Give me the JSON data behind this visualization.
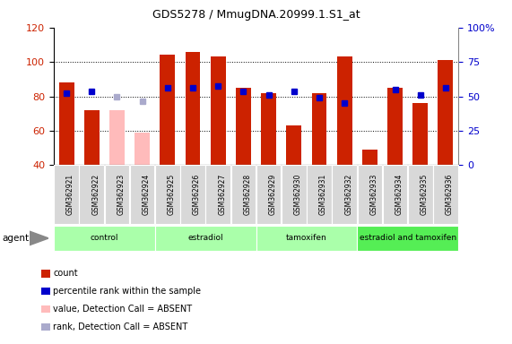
{
  "title": "GDS5278 / MmugDNA.20999.1.S1_at",
  "samples": [
    "GSM362921",
    "GSM362922",
    "GSM362923",
    "GSM362924",
    "GSM362925",
    "GSM362926",
    "GSM362927",
    "GSM362928",
    "GSM362929",
    "GSM362930",
    "GSM362931",
    "GSM362932",
    "GSM362933",
    "GSM362934",
    "GSM362935",
    "GSM362936"
  ],
  "count_values": [
    88,
    72,
    null,
    null,
    104,
    106,
    103,
    85,
    82,
    63,
    82,
    103,
    49,
    85,
    76,
    101
  ],
  "count_absent": [
    false,
    false,
    true,
    false,
    false,
    false,
    false,
    false,
    false,
    false,
    false,
    false,
    false,
    false,
    false,
    false
  ],
  "rank_values": [
    82,
    83,
    null,
    null,
    85,
    85,
    86,
    83,
    81,
    83,
    79,
    76,
    null,
    84,
    81,
    85
  ],
  "rank_absent": [
    false,
    false,
    false,
    true,
    false,
    false,
    false,
    false,
    false,
    false,
    false,
    false,
    false,
    false,
    false,
    false
  ],
  "absent_count_value": [
    null,
    null,
    72,
    59,
    null,
    null,
    null,
    null,
    null,
    null,
    null,
    null,
    null,
    null,
    null,
    null
  ],
  "absent_rank_value": [
    null,
    null,
    80,
    77,
    null,
    null,
    null,
    null,
    null,
    null,
    null,
    null,
    null,
    null,
    null,
    null
  ],
  "groups": [
    {
      "label": "control",
      "start": 0,
      "end": 3,
      "color": "#aaffaa"
    },
    {
      "label": "estradiol",
      "start": 4,
      "end": 7,
      "color": "#aaffaa"
    },
    {
      "label": "tamoxifen",
      "start": 8,
      "end": 11,
      "color": "#aaffaa"
    },
    {
      "label": "estradiol and tamoxifen",
      "start": 12,
      "end": 15,
      "color": "#55ee55"
    }
  ],
  "ylim_left": [
    40,
    120
  ],
  "ylim_right": [
    0,
    100
  ],
  "bar_color_present": "#cc2200",
  "bar_color_absent": "#ffbbbb",
  "rank_color_present": "#0000cc",
  "rank_color_absent": "#aaaacc",
  "legend_items": [
    {
      "label": "count",
      "color": "#cc2200"
    },
    {
      "label": "percentile rank within the sample",
      "color": "#0000cc"
    },
    {
      "label": "value, Detection Call = ABSENT",
      "color": "#ffbbbb"
    },
    {
      "label": "rank, Detection Call = ABSENT",
      "color": "#aaaacc"
    }
  ]
}
